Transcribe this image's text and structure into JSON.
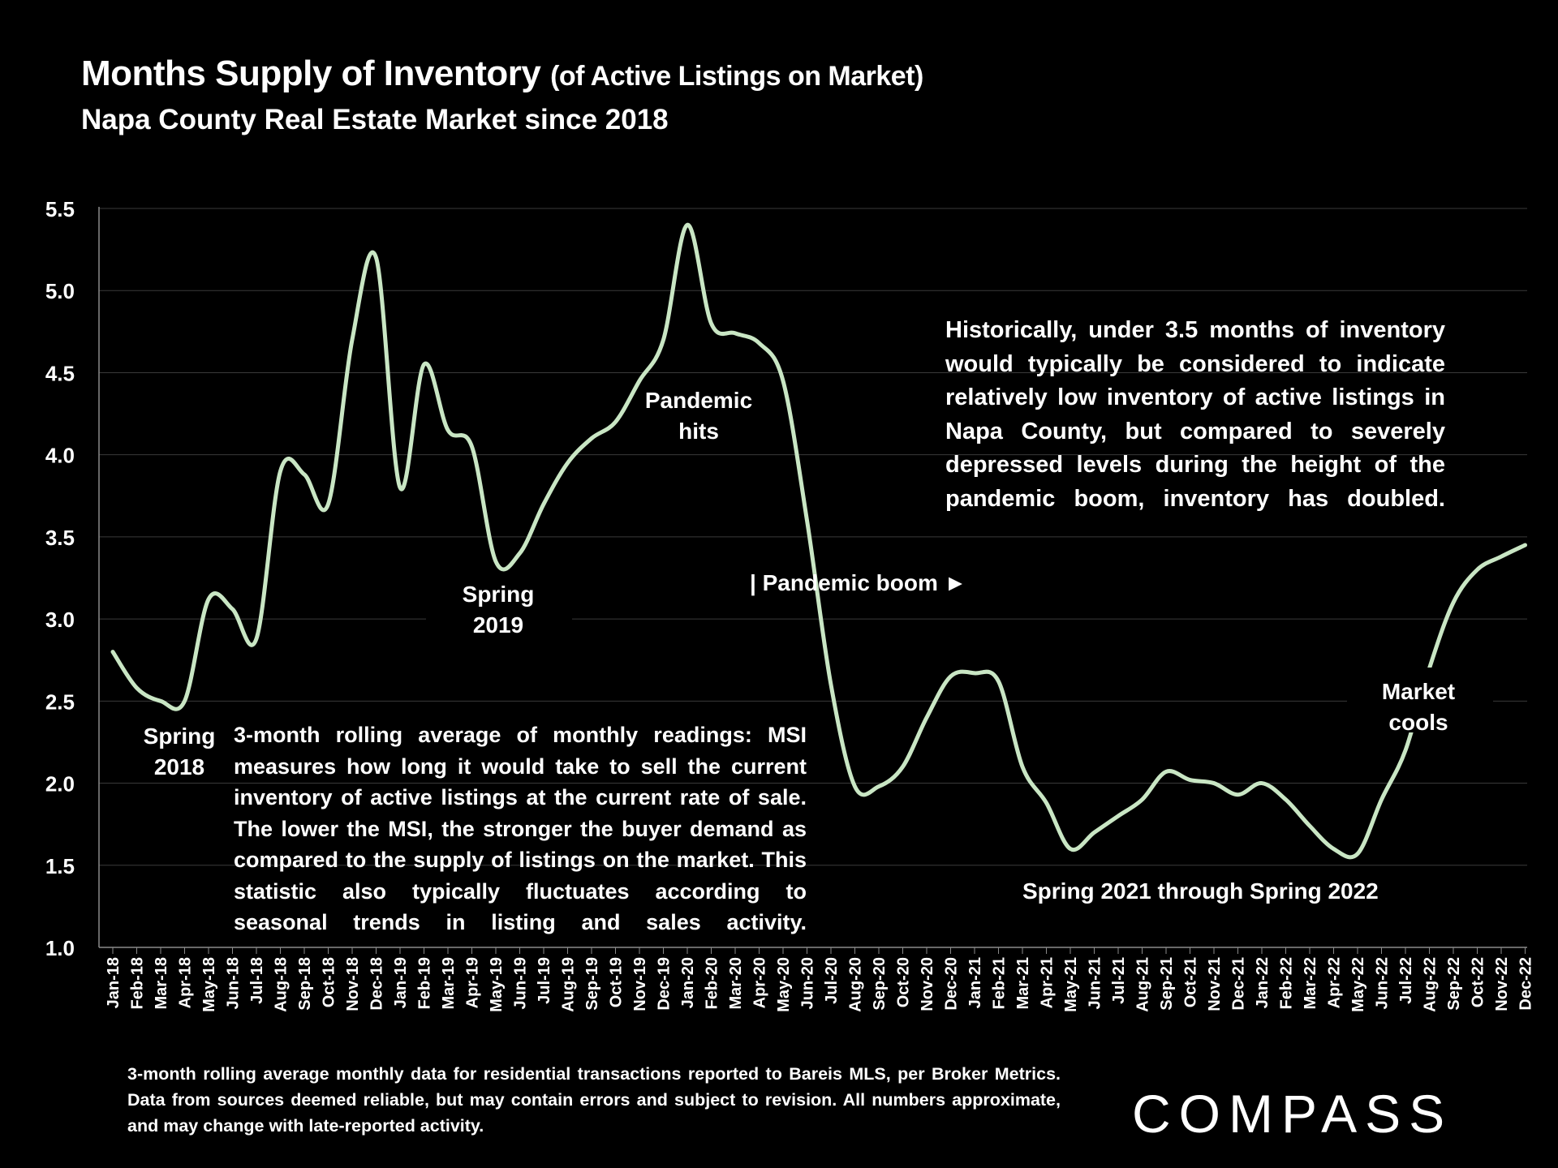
{
  "header": {
    "title_main": "Months Supply of Inventory",
    "title_paren": "(of Active Listings on Market)",
    "subtitle": "Napa County Real Estate Market since 2018"
  },
  "annotations": {
    "spring2018": [
      "Spring",
      "2018"
    ],
    "spring2019": [
      "Spring",
      "2019"
    ],
    "pandemic_hits": [
      "Pandemic",
      "hits"
    ],
    "market_cools": [
      "Market",
      "cools"
    ],
    "pandemic_boom": "| Pandemic boom ►",
    "spring2021": "Spring 2021 through Spring 2022",
    "msi_note": "3-month rolling average of monthly readings: MSI measures how long it would take to sell the current inventory of active listings at the current rate of sale. The lower the MSI, the stronger the buyer demand as compared to the supply of listings on the market. This statistic also typically fluctuates according to seasonal trends in listing and sales activity.",
    "historical_note": "Historically, under 3.5 months of inventory would typically be considered to indicate relatively low inventory of active listings in Napa County, but compared to severely depressed levels during the height of the pandemic boom, inventory has doubled."
  },
  "footnote": "3-month rolling average monthly data for residential transactions reported to Bareis MLS, per Broker Metrics. Data from sources deemed reliable, but may contain errors and subject to revision. All numbers approximate, and may change with late-reported activity.",
  "logo": "COMPASS",
  "colors": {
    "line": "#c9e6c4",
    "grid": "#3a3a3a",
    "axis": "#8a8a8a",
    "background": "#000000"
  },
  "chart_data": {
    "type": "line",
    "title": "Months Supply of Inventory (of Active Listings on Market)",
    "xlabel": "",
    "ylabel": "",
    "ylim": [
      1.0,
      5.5
    ],
    "yticks": [
      "1.0",
      "1.5",
      "2.0",
      "2.5",
      "3.0",
      "3.5",
      "4.0",
      "4.5",
      "5.0",
      "5.5"
    ],
    "grid": true,
    "categories": [
      "Jan-18",
      "Feb-18",
      "Mar-18",
      "Apr-18",
      "May-18",
      "Jun-18",
      "Jul-18",
      "Aug-18",
      "Sep-18",
      "Oct-18",
      "Nov-18",
      "Dec-18",
      "Jan-19",
      "Feb-19",
      "Mar-19",
      "Apr-19",
      "May-19",
      "Jun-19",
      "Jul-19",
      "Aug-19",
      "Sep-19",
      "Oct-19",
      "Nov-19",
      "Dec-19",
      "Jan-20",
      "Feb-20",
      "Mar-20",
      "Apr-20",
      "May-20",
      "Jun-20",
      "Jul-20",
      "Aug-20",
      "Sep-20",
      "Oct-20",
      "Nov-20",
      "Dec-20",
      "Jan-21",
      "Feb-21",
      "Mar-21",
      "Apr-21",
      "May-21",
      "Jun-21",
      "Jul-21",
      "Aug-21",
      "Sep-21",
      "Oct-21",
      "Nov-21",
      "Dec-21",
      "Jan-22",
      "Feb-22",
      "Mar-22",
      "Apr-22",
      "May-22",
      "Jun-22",
      "Jul-22",
      "Aug-22",
      "Sep-22",
      "Oct-22",
      "Nov-22",
      "Dec-22"
    ],
    "series": [
      {
        "name": "Months Supply of Inventory",
        "values": [
          2.8,
          2.58,
          2.5,
          2.5,
          3.12,
          3.06,
          2.88,
          3.9,
          3.88,
          3.7,
          4.7,
          5.2,
          3.8,
          4.55,
          4.15,
          4.05,
          3.35,
          3.4,
          3.7,
          3.95,
          4.1,
          4.2,
          4.45,
          4.7,
          5.4,
          4.8,
          4.74,
          4.68,
          4.45,
          3.6,
          2.6,
          1.98,
          1.98,
          2.1,
          2.4,
          2.65,
          2.67,
          2.62,
          2.1,
          1.88,
          1.6,
          1.7,
          1.8,
          1.9,
          2.07,
          2.02,
          2.0,
          1.93,
          2.0,
          1.9,
          1.74,
          1.6,
          1.57,
          1.9,
          2.2,
          2.7,
          3.1,
          3.3,
          3.38,
          3.45
        ]
      }
    ]
  }
}
